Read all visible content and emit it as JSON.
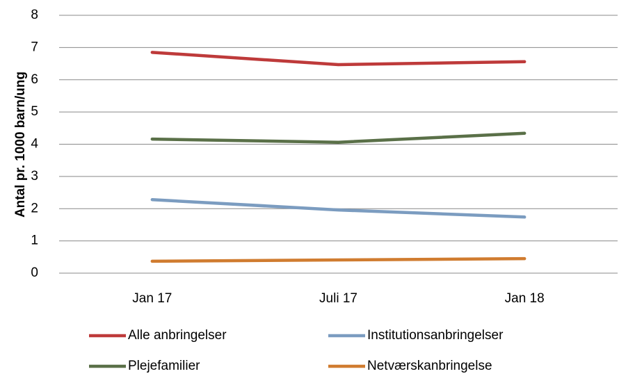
{
  "chart_data": {
    "type": "line",
    "y_label": "Antal pr. 1000 barn/ung",
    "categories": [
      "Jan 17",
      "Juli 17",
      "Jan 18"
    ],
    "series": [
      {
        "name": "Alle anbringelser",
        "color": "#be3a3a",
        "values": [
          6.85,
          6.47,
          6.56
        ]
      },
      {
        "name": "Institutionsanbringelser",
        "color": "#7b9cc0",
        "values": [
          2.28,
          1.96,
          1.74
        ]
      },
      {
        "name": "Plejefamilier",
        "color": "#5a7048",
        "values": [
          4.16,
          4.06,
          4.34
        ]
      },
      {
        "name": "Netværskanbringelse",
        "color": "#d07c30",
        "values": [
          0.37,
          0.41,
          0.45
        ]
      }
    ],
    "ylim": [
      0,
      8
    ],
    "yticks": [
      0,
      1,
      2,
      3,
      4,
      5,
      6,
      7,
      8
    ],
    "grid": true
  }
}
